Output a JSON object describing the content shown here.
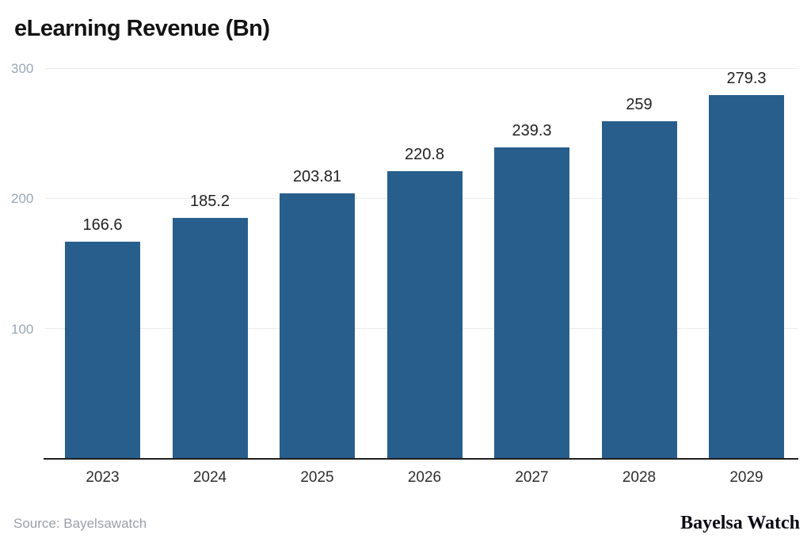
{
  "chart_data": {
    "type": "bar",
    "title": "eLearning Revenue (Bn)",
    "categories": [
      "2023",
      "2024",
      "2025",
      "2026",
      "2027",
      "2028",
      "2029"
    ],
    "values": [
      166.6,
      185.2,
      203.81,
      220.8,
      239.3,
      259,
      279.3
    ],
    "value_labels": [
      "166.6",
      "185.2",
      "203.81",
      "220.8",
      "239.3",
      "259",
      "279.3"
    ],
    "xlabel": "",
    "ylabel": "",
    "yticks": [
      100,
      200,
      300
    ],
    "ylim": [
      0,
      300
    ],
    "grid": "horizontal-only",
    "legend": "none",
    "bar_color": "#285e8c"
  },
  "footer": {
    "source": "Source: Bayelsawatch",
    "brand": "Bayelsa Watch"
  },
  "colors": {
    "bar": "#285e8c",
    "gridline": "#ebebeb",
    "axis": "#1f1f1f",
    "y_tick_text": "#9aa6b4",
    "value_text": "#222222",
    "title_text": "#131313",
    "source_text": "#9aa0a8",
    "brand_text": "#0b0b13"
  }
}
